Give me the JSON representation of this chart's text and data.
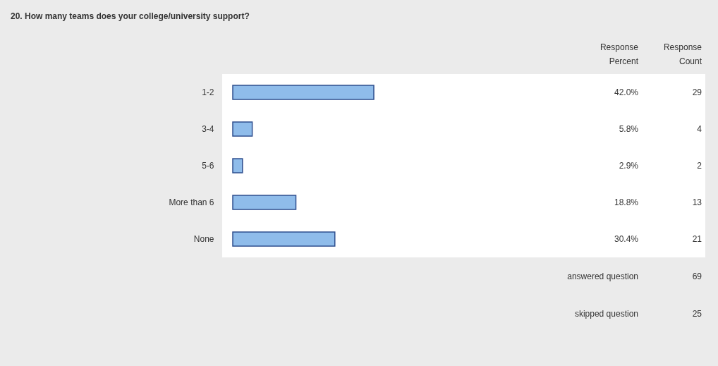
{
  "chart_data": {
    "type": "bar",
    "orientation": "horizontal",
    "title": "20. How many teams does your college/university support?",
    "categories": [
      "1-2",
      "3-4",
      "5-6",
      "More than 6",
      "None"
    ],
    "values": [
      42.0,
      5.8,
      2.9,
      18.8,
      30.4
    ],
    "value_labels": [
      "42.0%",
      "5.8%",
      "2.9%",
      "18.8%",
      "30.4%"
    ],
    "color": "#8fbcea",
    "tick_labels": "y",
    "annotations": [
      "Response Percent",
      "Response Count",
      "29",
      "4",
      "2",
      "13",
      "21",
      "answered question",
      "69",
      "skipped question",
      "25"
    ]
  }
}
